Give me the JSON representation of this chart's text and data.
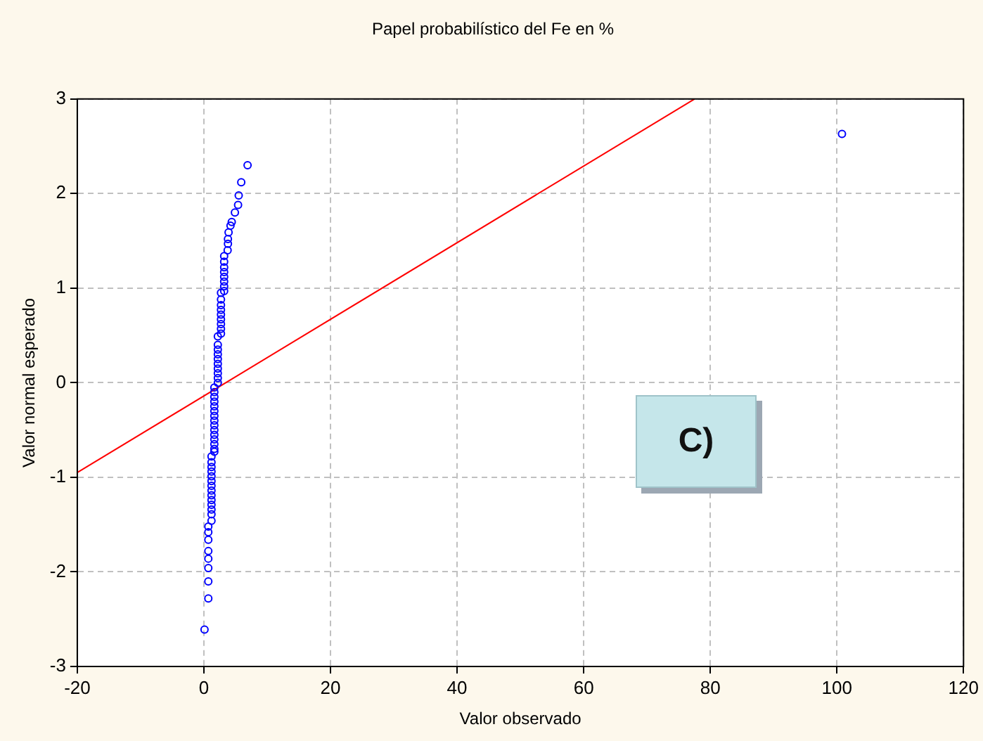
{
  "chart_data": {
    "type": "scatter",
    "title": "Papel probabilístico del Fe en %",
    "xlabel": "Valor observado",
    "ylabel": "Valor normal esperado",
    "xlim": [
      -20,
      120
    ],
    "xticks": [
      -20,
      0,
      20,
      40,
      60,
      80,
      100,
      120
    ],
    "ylim": [
      -3,
      3
    ],
    "yticks": [
      -3,
      -2,
      -1,
      0,
      1,
      2,
      3
    ],
    "grid": true,
    "annotations": [
      "C)"
    ],
    "series": [
      {
        "marker": "circle",
        "color": "#0000ff",
        "x": [
          0.1,
          0.7,
          0.7,
          0.7,
          0.7,
          0.7,
          0.7,
          0.7,
          0.7,
          1.2,
          1.2,
          1.2,
          1.2,
          1.2,
          1.2,
          1.2,
          1.2,
          1.2,
          1.2,
          1.2,
          1.2,
          1.2,
          1.2,
          1.65,
          1.65,
          1.65,
          1.65,
          1.65,
          1.65,
          1.65,
          1.65,
          1.65,
          1.65,
          1.65,
          1.65,
          1.65,
          1.65,
          1.65,
          2.2,
          2.2,
          2.2,
          2.2,
          2.2,
          2.2,
          2.2,
          2.2,
          2.2,
          2.2,
          2.7,
          2.7,
          2.7,
          2.7,
          2.7,
          2.7,
          2.7,
          2.7,
          2.7,
          3.2,
          3.2,
          3.2,
          3.2,
          3.2,
          3.2,
          3.2,
          3.2,
          3.75,
          3.8,
          3.8,
          3.9,
          4.2,
          4.4,
          4.9,
          5.4,
          5.5,
          5.9,
          6.9,
          100.8
        ],
        "values": [
          -2.61,
          -2.28,
          -2.1,
          -1.96,
          -1.86,
          -1.78,
          -1.66,
          -1.58,
          -1.52,
          -1.46,
          -1.39,
          -1.34,
          -1.29,
          -1.24,
          -1.19,
          -1.14,
          -1.09,
          -1.04,
          -0.99,
          -0.94,
          -0.89,
          -0.84,
          -0.78,
          -0.73,
          -0.7,
          -0.65,
          -0.6,
          -0.55,
          -0.5,
          -0.45,
          -0.4,
          -0.35,
          -0.3,
          -0.25,
          -0.2,
          -0.15,
          -0.1,
          -0.05,
          0.0,
          0.05,
          0.1,
          0.15,
          0.2,
          0.25,
          0.3,
          0.35,
          0.4,
          0.49,
          0.52,
          0.57,
          0.62,
          0.67,
          0.72,
          0.77,
          0.82,
          0.88,
          0.95,
          0.97,
          1.02,
          1.07,
          1.12,
          1.17,
          1.22,
          1.28,
          1.34,
          1.4,
          1.47,
          1.52,
          1.59,
          1.66,
          1.7,
          1.8,
          1.88,
          1.98,
          2.12,
          2.3,
          2.63
        ]
      },
      {
        "type": "line",
        "marker": "none",
        "color": "#ff0000",
        "x": [
          -20,
          77.5
        ],
        "values": [
          -0.95,
          3
        ]
      }
    ]
  }
}
